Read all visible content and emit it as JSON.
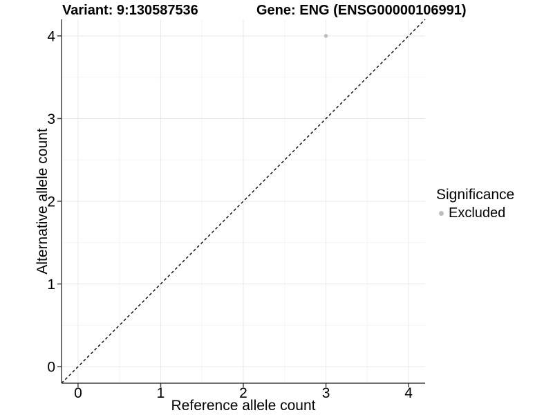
{
  "colors": {
    "background": "#ffffff",
    "grid_major": "#e8e8e8",
    "grid_minor": "#f4f4f4",
    "axis_line": "#404040",
    "tick_text": "#000000",
    "point": "#bdbdbd",
    "reference_line": "#000000"
  },
  "chart_data": {
    "type": "scatter",
    "titles": {
      "variant": "Variant: 9:130587536",
      "gene": "Gene: ENG (ENSG00000106991)"
    },
    "xlabel": "Reference allele count",
    "ylabel": "Alternative allele count",
    "xlim": [
      -0.2,
      4.2
    ],
    "ylim": [
      -0.2,
      4.2
    ],
    "xticks": [
      0,
      1,
      2,
      3,
      4
    ],
    "yticks": [
      0,
      1,
      2,
      3,
      4
    ],
    "grid": {
      "major": true,
      "minor": true
    },
    "legend": {
      "title": "Significance",
      "position": "right",
      "items": [
        {
          "label": "Excluded",
          "color": "#bdbdbd"
        }
      ]
    },
    "series": [
      {
        "name": "Excluded",
        "color": "#bdbdbd",
        "point_radius": 2.8,
        "points": [
          [
            3,
            4
          ]
        ]
      }
    ],
    "reference_line": {
      "kind": "identity y=x",
      "style": "dashed",
      "color": "#000000"
    }
  }
}
